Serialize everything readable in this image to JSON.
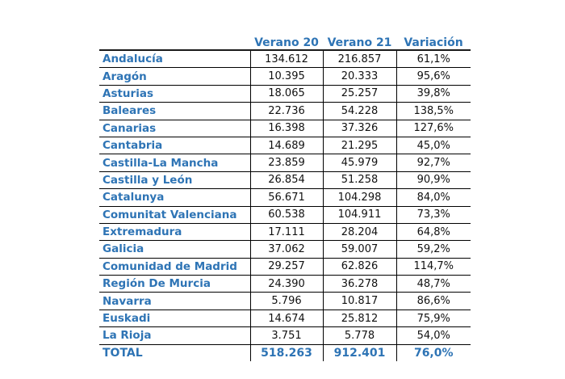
{
  "chart_data": {
    "type": "table",
    "columns": [
      "Verano 20",
      "Verano 21",
      "Variación"
    ],
    "rows": [
      {
        "region": "Andalucía",
        "verano20": "134.612",
        "verano21": "216.857",
        "variacion": "61,1%"
      },
      {
        "region": "Aragón",
        "verano20": "10.395",
        "verano21": "20.333",
        "variacion": "95,6%"
      },
      {
        "region": "Asturias",
        "verano20": "18.065",
        "verano21": "25.257",
        "variacion": "39,8%"
      },
      {
        "region": "Baleares",
        "verano20": "22.736",
        "verano21": "54.228",
        "variacion": "138,5%"
      },
      {
        "region": "Canarias",
        "verano20": "16.398",
        "verano21": "37.326",
        "variacion": "127,6%"
      },
      {
        "region": "Cantabria",
        "verano20": "14.689",
        "verano21": "21.295",
        "variacion": "45,0%"
      },
      {
        "region": "Castilla-La Mancha",
        "verano20": "23.859",
        "verano21": "45.979",
        "variacion": "92,7%"
      },
      {
        "region": "Castilla y León",
        "verano20": "26.854",
        "verano21": "51.258",
        "variacion": "90,9%"
      },
      {
        "region": "Catalunya",
        "verano20": "56.671",
        "verano21": "104.298",
        "variacion": "84,0%"
      },
      {
        "region": "Comunitat Valenciana",
        "verano20": "60.538",
        "verano21": "104.911",
        "variacion": "73,3%"
      },
      {
        "region": "Extremadura",
        "verano20": "17.111",
        "verano21": "28.204",
        "variacion": "64,8%"
      },
      {
        "region": "Galicia",
        "verano20": "37.062",
        "verano21": "59.007",
        "variacion": "59,2%"
      },
      {
        "region": "Comunidad de Madrid",
        "verano20": "29.257",
        "verano21": "62.826",
        "variacion": "114,7%"
      },
      {
        "region": "Región De Murcia",
        "verano20": "24.390",
        "verano21": "36.278",
        "variacion": "48,7%"
      },
      {
        "region": "Navarra",
        "verano20": "5.796",
        "verano21": "10.817",
        "variacion": "86,6%"
      },
      {
        "region": "Euskadi",
        "verano20": "14.674",
        "verano21": "25.812",
        "variacion": "75,9%"
      },
      {
        "region": "La Rioja",
        "verano20": "3.751",
        "verano21": "5.778",
        "variacion": "54,0%"
      }
    ],
    "total": {
      "label": "TOTAL",
      "verano20": "518.263",
      "verano21": "912.401",
      "variacion": "76,0%"
    },
    "colors": {
      "header_text": "#2e74b5",
      "region_text": "#2e74b5",
      "value_text": "#111111",
      "rules": "#000000"
    }
  }
}
